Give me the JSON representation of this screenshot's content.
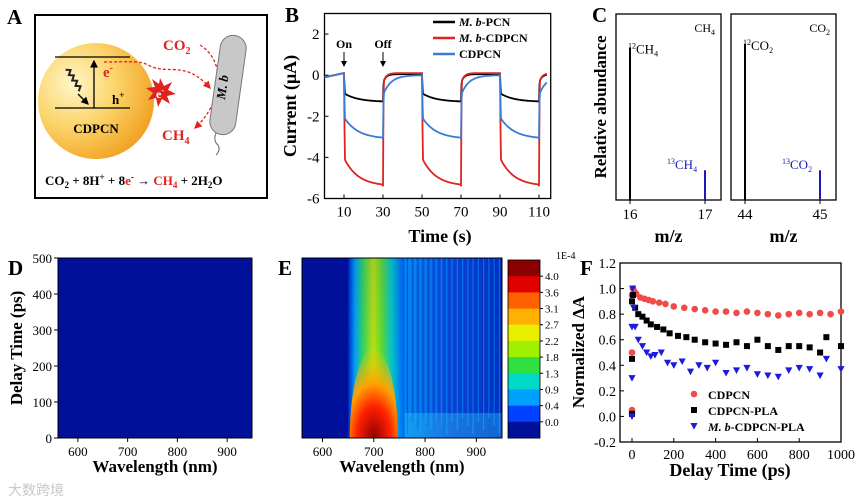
{
  "panel_labels": [
    "A",
    "B",
    "C",
    "D",
    "E",
    "F"
  ],
  "watermark": "大数跨境",
  "panelA": {
    "particle_label": "CDPCN",
    "electron": "e",
    "electron_sup": "-",
    "hole": "h",
    "hole_sup": "+",
    "co2": "CO",
    "co2_sub": "2",
    "ch4": "CH",
    "ch4_sub": "4",
    "microbe": "M. b",
    "equation": {
      "p1": "CO",
      "s1": "2",
      "p2": " + 8H",
      "s2": "+",
      "p3": " + 8",
      "e": "e",
      "es": "-",
      "arrow": " → ",
      "ch4": "CH",
      "ch4s": "4",
      "p4": " + 2H",
      "s4": "2",
      "p5": "O"
    },
    "colors": {
      "red": "#e0231f",
      "particle_light": "#fdeaa0",
      "particle_dark": "#f2a626"
    }
  },
  "chart_data": [
    {
      "panel": "B",
      "type": "line",
      "xlabel": "Time (s)",
      "ylabel": "Current (μA)",
      "xlim": [
        0,
        116
      ],
      "ylim": [
        -6,
        3
      ],
      "xticks": [
        10,
        30,
        50,
        70,
        90,
        110
      ],
      "yticks": [
        2,
        0,
        -2,
        -4,
        -6
      ],
      "annotations": [
        {
          "text": "On",
          "x": 10
        },
        {
          "text": "Off",
          "x": 30
        }
      ],
      "light_on": [
        10,
        50,
        90
      ],
      "light_off": [
        30,
        70,
        110
      ],
      "series": [
        {
          "name_italic": "M. b",
          "name_rest": "-PCN",
          "color": "#000000",
          "jump": -0.9,
          "on_level": -1.3,
          "off_level": 0.05
        },
        {
          "name_italic": "M. b",
          "name_rest": "-CDPCN",
          "color": "#e0231f",
          "jump": -4.1,
          "on_level": -5.4,
          "off_level": 0.1
        },
        {
          "name_italic": "",
          "name_rest": "CDPCN",
          "color": "#3a7bd5",
          "jump": -2.1,
          "on_level": -3.1,
          "off_level": 0.0
        }
      ]
    },
    {
      "panel": "C",
      "type": "bar",
      "ylabel": "Relative abundance",
      "xlabel": "m/z",
      "subplots": [
        {
          "title": "CH",
          "title_sub": "4",
          "xticks": [
            16,
            17
          ],
          "peaks": [
            {
              "mz": 16,
              "value": 0.82,
              "label": "CH",
              "label_sup": "12",
              "label_sub": "4",
              "color": "#000000"
            },
            {
              "mz": 17,
              "value": 0.16,
              "label": "CH",
              "label_sup": "13",
              "label_sub": "4",
              "color": "#1a1ab8"
            }
          ]
        },
        {
          "title": "CO",
          "title_sub": "2",
          "xticks": [
            44,
            45
          ],
          "peaks": [
            {
              "mz": 44,
              "value": 0.84,
              "label": "CO",
              "label_sup": "12",
              "label_sub": "2",
              "color": "#000000"
            },
            {
              "mz": 45,
              "value": 0.16,
              "label": "CO",
              "label_sup": "13",
              "label_sub": "2",
              "color": "#1a1ab8"
            }
          ]
        }
      ]
    },
    {
      "panel": "D",
      "type": "heatmap",
      "xlabel": "Wavelength (nm)",
      "ylabel": "Delay Time (ps)",
      "xlim": [
        560,
        950
      ],
      "ylim": [
        0,
        500
      ],
      "xticks": [
        600,
        700,
        800,
        900
      ],
      "yticks": [
        0,
        100,
        200,
        300,
        400,
        500
      ],
      "description_value": 0.0
    },
    {
      "panel": "E",
      "type": "heatmap",
      "xlabel": "Wavelength (nm)",
      "xlim": [
        560,
        950
      ],
      "ylim": [
        0,
        500
      ],
      "xticks": [
        600,
        700,
        800,
        900
      ],
      "peak_wavelength": 700,
      "colorbar": {
        "scale_label": "1E-4",
        "ticks": [
          "4.0",
          "3.6",
          "3.1",
          "2.7",
          "2.2",
          "1.8",
          "1.3",
          "0.9",
          "0.4",
          "0.0"
        ],
        "colors": [
          "#8b0000",
          "#e00000",
          "#ff6000",
          "#ffb000",
          "#e8f000",
          "#a0f000",
          "#30e040",
          "#00d8c8",
          "#00a0ff",
          "#0040ff",
          "#00109a"
        ]
      }
    },
    {
      "panel": "F",
      "type": "scatter",
      "xlabel": "Delay Time (ps)",
      "ylabel": "Normalized ΔA",
      "xlim": [
        0,
        1000
      ],
      "ylim": [
        -0.2,
        1.2
      ],
      "xticks": [
        0,
        200,
        400,
        600,
        800,
        1000
      ],
      "yticks": [
        "1.2",
        "1.0",
        "0.8",
        "0.6",
        "0.4",
        "0.2",
        "0.0",
        "-0.2"
      ],
      "legend_position": "bottom-right",
      "series": [
        {
          "name_italic": "",
          "name_rest": "CDPCN",
          "marker": "circle",
          "color": "#f04a4a",
          "x": [
            0,
            0,
            0,
            5,
            10,
            20,
            40,
            60,
            80,
            100,
            130,
            160,
            200,
            250,
            300,
            350,
            400,
            450,
            500,
            550,
            600,
            650,
            700,
            750,
            800,
            850,
            900,
            950,
            1000
          ],
          "y": [
            0.05,
            0.5,
            0.95,
            1.0,
            0.98,
            0.96,
            0.93,
            0.92,
            0.91,
            0.9,
            0.89,
            0.88,
            0.86,
            0.85,
            0.84,
            0.83,
            0.82,
            0.82,
            0.81,
            0.82,
            0.81,
            0.8,
            0.79,
            0.8,
            0.81,
            0.8,
            0.81,
            0.8,
            0.82
          ]
        },
        {
          "name_italic": "",
          "name_rest": "CDPCN-PLA",
          "marker": "square",
          "color": "#000000",
          "x": [
            0,
            0,
            0,
            5,
            15,
            30,
            50,
            70,
            90,
            120,
            150,
            180,
            220,
            260,
            300,
            350,
            400,
            450,
            500,
            550,
            600,
            650,
            700,
            750,
            800,
            850,
            900,
            930,
            1000
          ],
          "y": [
            0.02,
            0.45,
            0.9,
            0.95,
            0.85,
            0.8,
            0.78,
            0.75,
            0.72,
            0.7,
            0.68,
            0.65,
            0.63,
            0.62,
            0.6,
            0.58,
            0.57,
            0.56,
            0.58,
            0.55,
            0.6,
            0.55,
            0.52,
            0.55,
            0.55,
            0.54,
            0.5,
            0.62,
            0.55
          ]
        },
        {
          "name_italic": "M. b",
          "name_rest": "-CDPCN-PLA",
          "marker": "triangle-down",
          "color": "#1a1ae0",
          "x": [
            0,
            0,
            0,
            3,
            8,
            15,
            30,
            50,
            70,
            90,
            110,
            140,
            170,
            200,
            240,
            280,
            320,
            360,
            400,
            450,
            500,
            550,
            600,
            650,
            700,
            750,
            800,
            850,
            900,
            930,
            1000
          ],
          "y": [
            0.0,
            0.3,
            0.7,
            1.0,
            0.85,
            0.7,
            0.6,
            0.55,
            0.5,
            0.47,
            0.48,
            0.5,
            0.42,
            0.4,
            0.43,
            0.35,
            0.4,
            0.38,
            0.42,
            0.34,
            0.36,
            0.38,
            0.33,
            0.32,
            0.31,
            0.36,
            0.38,
            0.37,
            0.32,
            0.45,
            0.37
          ]
        }
      ]
    }
  ]
}
